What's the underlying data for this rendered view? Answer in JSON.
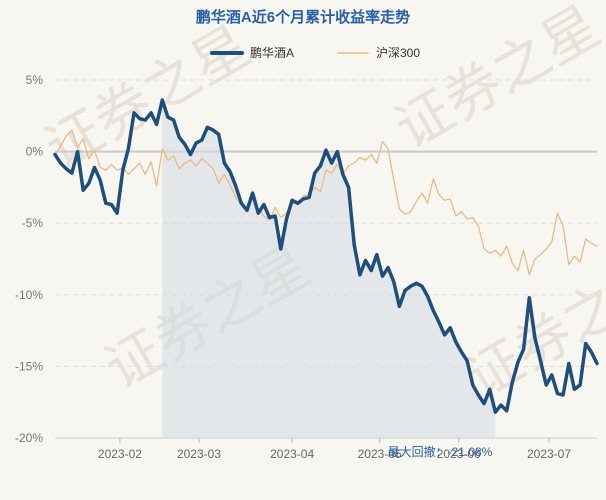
{
  "chart_data": {
    "type": "line",
    "title": "鹏华酒A近6个月累计收益率走势",
    "legend_placement": "top",
    "grid": true,
    "ylim": [
      -20,
      5
    ],
    "y_ticks": [
      {
        "value": 5,
        "label": "5%"
      },
      {
        "value": 0,
        "label": "0%"
      },
      {
        "value": -5,
        "label": "-5%"
      },
      {
        "value": -10,
        "label": "-10%"
      },
      {
        "value": -15,
        "label": "-15%"
      },
      {
        "value": -20,
        "label": "-20%"
      }
    ],
    "x_ticks": [
      {
        "date": "2023-02-01",
        "label": "2023-02"
      },
      {
        "date": "2023-03-01",
        "label": "2023-03"
      },
      {
        "date": "2023-04-03",
        "label": "2023-04"
      },
      {
        "date": "2023-05-04",
        "label": "2023-05"
      },
      {
        "date": "2023-06-01",
        "label": "2023-06"
      },
      {
        "date": "2023-07-03",
        "label": "2023-07"
      }
    ],
    "x_range": [
      "2023-01-09",
      "2023-07-20"
    ],
    "series": [
      {
        "name": "鹏华酒A",
        "color": "#1f4e7d",
        "points": [
          [
            "2023-01-09",
            -0.2
          ],
          [
            "2023-01-11",
            -0.8
          ],
          [
            "2023-01-13",
            -1.2
          ],
          [
            "2023-01-15",
            -1.5
          ],
          [
            "2023-01-17",
            0.0
          ],
          [
            "2023-01-19",
            -2.7
          ],
          [
            "2023-01-21",
            -2.2
          ],
          [
            "2023-01-23",
            -1.1
          ],
          [
            "2023-01-25",
            -2.0
          ],
          [
            "2023-01-27",
            -3.6
          ],
          [
            "2023-01-29",
            -3.7
          ],
          [
            "2023-01-31",
            -4.3
          ],
          [
            "2023-02-02",
            -1.3
          ],
          [
            "2023-02-04",
            0.2
          ],
          [
            "2023-02-06",
            2.7
          ],
          [
            "2023-02-08",
            2.3
          ],
          [
            "2023-02-10",
            2.2
          ],
          [
            "2023-02-12",
            2.7
          ],
          [
            "2023-02-14",
            1.9
          ],
          [
            "2023-02-16",
            3.6
          ],
          [
            "2023-02-18",
            2.4
          ],
          [
            "2023-02-20",
            2.2
          ],
          [
            "2023-02-22",
            1.0
          ],
          [
            "2023-02-24",
            0.5
          ],
          [
            "2023-02-26",
            -0.2
          ],
          [
            "2023-02-28",
            0.6
          ],
          [
            "2023-03-02",
            0.8
          ],
          [
            "2023-03-04",
            1.7
          ],
          [
            "2023-03-06",
            1.5
          ],
          [
            "2023-03-08",
            1.2
          ],
          [
            "2023-03-10",
            -0.8
          ],
          [
            "2023-03-12",
            -1.4
          ],
          [
            "2023-03-14",
            -2.4
          ],
          [
            "2023-03-16",
            -3.6
          ],
          [
            "2023-03-18",
            -4.1
          ],
          [
            "2023-03-20",
            -2.9
          ],
          [
            "2023-03-22",
            -4.3
          ],
          [
            "2023-03-24",
            -3.7
          ],
          [
            "2023-03-26",
            -4.6
          ],
          [
            "2023-03-28",
            -4.5
          ],
          [
            "2023-03-30",
            -6.8
          ],
          [
            "2023-04-01",
            -4.7
          ],
          [
            "2023-04-03",
            -3.4
          ],
          [
            "2023-04-05",
            -3.6
          ],
          [
            "2023-04-07",
            -3.3
          ],
          [
            "2023-04-09",
            -3.2
          ],
          [
            "2023-04-11",
            -1.5
          ],
          [
            "2023-04-13",
            -1.0
          ],
          [
            "2023-04-15",
            0.1
          ],
          [
            "2023-04-17",
            -0.8
          ],
          [
            "2023-04-19",
            0.0
          ],
          [
            "2023-04-21",
            -1.6
          ],
          [
            "2023-04-23",
            -2.5
          ],
          [
            "2023-04-25",
            -6.5
          ],
          [
            "2023-04-27",
            -8.6
          ],
          [
            "2023-04-29",
            -7.6
          ],
          [
            "2023-05-01",
            -8.3
          ],
          [
            "2023-05-03",
            -7.2
          ],
          [
            "2023-05-05",
            -8.7
          ],
          [
            "2023-05-07",
            -8.1
          ],
          [
            "2023-05-09",
            -9.1
          ],
          [
            "2023-05-11",
            -10.8
          ],
          [
            "2023-05-13",
            -9.7
          ],
          [
            "2023-05-15",
            -9.4
          ],
          [
            "2023-05-17",
            -9.2
          ],
          [
            "2023-05-19",
            -9.4
          ],
          [
            "2023-05-21",
            -10.1
          ],
          [
            "2023-05-23",
            -11.1
          ],
          [
            "2023-05-25",
            -11.9
          ],
          [
            "2023-05-27",
            -12.8
          ],
          [
            "2023-05-29",
            -12.3
          ],
          [
            "2023-05-31",
            -13.3
          ],
          [
            "2023-06-02",
            -14.0
          ],
          [
            "2023-06-04",
            -14.6
          ],
          [
            "2023-06-06",
            -16.3
          ],
          [
            "2023-06-08",
            -17.0
          ],
          [
            "2023-06-10",
            -17.6
          ],
          [
            "2023-06-12",
            -16.6
          ],
          [
            "2023-06-14",
            -18.2
          ],
          [
            "2023-06-16",
            -17.7
          ],
          [
            "2023-06-18",
            -18.1
          ],
          [
            "2023-06-20",
            -16.1
          ],
          [
            "2023-06-22",
            -14.7
          ],
          [
            "2023-06-24",
            -13.8
          ],
          [
            "2023-06-26",
            -10.2
          ],
          [
            "2023-06-28",
            -13.0
          ],
          [
            "2023-06-30",
            -14.6
          ],
          [
            "2023-07-02",
            -16.3
          ],
          [
            "2023-07-04",
            -15.6
          ],
          [
            "2023-07-06",
            -16.9
          ],
          [
            "2023-07-08",
            -17.0
          ],
          [
            "2023-07-10",
            -14.8
          ],
          [
            "2023-07-12",
            -16.6
          ],
          [
            "2023-07-14",
            -16.3
          ],
          [
            "2023-07-16",
            -13.4
          ],
          [
            "2023-07-18",
            -14.0
          ],
          [
            "2023-07-20",
            -14.8
          ]
        ]
      },
      {
        "name": "沪深300",
        "color": "#f0b57c",
        "points": [
          [
            "2023-01-09",
            -0.3
          ],
          [
            "2023-01-11",
            0.4
          ],
          [
            "2023-01-13",
            1.1
          ],
          [
            "2023-01-15",
            1.5
          ],
          [
            "2023-01-17",
            0.3
          ],
          [
            "2023-01-19",
            0.9
          ],
          [
            "2023-01-21",
            -0.5
          ],
          [
            "2023-01-23",
            0.1
          ],
          [
            "2023-01-25",
            -1.1
          ],
          [
            "2023-01-27",
            -1.3
          ],
          [
            "2023-01-29",
            -0.9
          ],
          [
            "2023-01-31",
            -1.3
          ],
          [
            "2023-02-02",
            -1.1
          ],
          [
            "2023-02-04",
            -1.6
          ],
          [
            "2023-02-06",
            -1.2
          ],
          [
            "2023-02-08",
            -0.8
          ],
          [
            "2023-02-10",
            -1.6
          ],
          [
            "2023-02-12",
            -0.7
          ],
          [
            "2023-02-14",
            -2.4
          ],
          [
            "2023-02-16",
            0.2
          ],
          [
            "2023-02-18",
            -0.6
          ],
          [
            "2023-02-20",
            -0.3
          ],
          [
            "2023-02-22",
            -1.2
          ],
          [
            "2023-02-24",
            -0.8
          ],
          [
            "2023-02-26",
            -0.6
          ],
          [
            "2023-02-28",
            -1.0
          ],
          [
            "2023-03-02",
            -0.5
          ],
          [
            "2023-03-04",
            -0.8
          ],
          [
            "2023-03-06",
            -1.2
          ],
          [
            "2023-03-08",
            -2.2
          ],
          [
            "2023-03-10",
            -1.6
          ],
          [
            "2023-03-12",
            -2.3
          ],
          [
            "2023-03-14",
            -3.2
          ],
          [
            "2023-03-16",
            -3.7
          ],
          [
            "2023-03-18",
            -4.1
          ],
          [
            "2023-03-20",
            -3.3
          ],
          [
            "2023-03-22",
            -4.0
          ],
          [
            "2023-03-24",
            -4.5
          ],
          [
            "2023-03-26",
            -4.8
          ],
          [
            "2023-03-28",
            -3.9
          ],
          [
            "2023-03-30",
            -4.6
          ],
          [
            "2023-04-01",
            -4.3
          ],
          [
            "2023-04-03",
            -3.6
          ],
          [
            "2023-04-05",
            -3.7
          ],
          [
            "2023-04-07",
            -3.1
          ],
          [
            "2023-04-09",
            -3.0
          ],
          [
            "2023-04-11",
            -2.5
          ],
          [
            "2023-04-13",
            -2.8
          ],
          [
            "2023-04-15",
            -1.3
          ],
          [
            "2023-04-17",
            -1.5
          ],
          [
            "2023-04-19",
            -0.9
          ],
          [
            "2023-04-21",
            -1.6
          ],
          [
            "2023-04-23",
            -1.0
          ],
          [
            "2023-04-25",
            -0.8
          ],
          [
            "2023-04-27",
            -0.4
          ],
          [
            "2023-04-29",
            -0.6
          ],
          [
            "2023-05-01",
            -0.2
          ],
          [
            "2023-05-03",
            -0.8
          ],
          [
            "2023-05-05",
            0.7
          ],
          [
            "2023-05-07",
            0.2
          ],
          [
            "2023-05-09",
            -2.0
          ],
          [
            "2023-05-11",
            -4.0
          ],
          [
            "2023-05-13",
            -4.4
          ],
          [
            "2023-05-15",
            -4.2
          ],
          [
            "2023-05-17",
            -3.5
          ],
          [
            "2023-05-19",
            -2.9
          ],
          [
            "2023-05-21",
            -3.6
          ],
          [
            "2023-05-23",
            -1.9
          ],
          [
            "2023-05-25",
            -3.0
          ],
          [
            "2023-05-27",
            -3.4
          ],
          [
            "2023-05-29",
            -3.3
          ],
          [
            "2023-05-31",
            -4.5
          ],
          [
            "2023-06-02",
            -4.2
          ],
          [
            "2023-06-04",
            -4.7
          ],
          [
            "2023-06-06",
            -4.6
          ],
          [
            "2023-06-08",
            -5.2
          ],
          [
            "2023-06-10",
            -6.8
          ],
          [
            "2023-06-12",
            -7.1
          ],
          [
            "2023-06-14",
            -6.9
          ],
          [
            "2023-06-16",
            -7.3
          ],
          [
            "2023-06-18",
            -6.6
          ],
          [
            "2023-06-20",
            -7.8
          ],
          [
            "2023-06-22",
            -8.3
          ],
          [
            "2023-06-24",
            -6.9
          ],
          [
            "2023-06-26",
            -8.6
          ],
          [
            "2023-06-28",
            -7.5
          ],
          [
            "2023-06-30",
            -7.2
          ],
          [
            "2023-07-02",
            -6.8
          ],
          [
            "2023-07-04",
            -6.3
          ],
          [
            "2023-07-06",
            -4.3
          ],
          [
            "2023-07-08",
            -5.2
          ],
          [
            "2023-07-10",
            -7.9
          ],
          [
            "2023-07-12",
            -7.3
          ],
          [
            "2023-07-14",
            -7.7
          ],
          [
            "2023-07-16",
            -6.1
          ],
          [
            "2023-07-18",
            -6.4
          ],
          [
            "2023-07-20",
            -6.6
          ]
        ]
      }
    ],
    "drawdown": {
      "start": "2023-02-16",
      "end": "2023-06-14",
      "label": "最大回撤：-21.08%"
    }
  },
  "watermark": {
    "text": "证券之星"
  }
}
